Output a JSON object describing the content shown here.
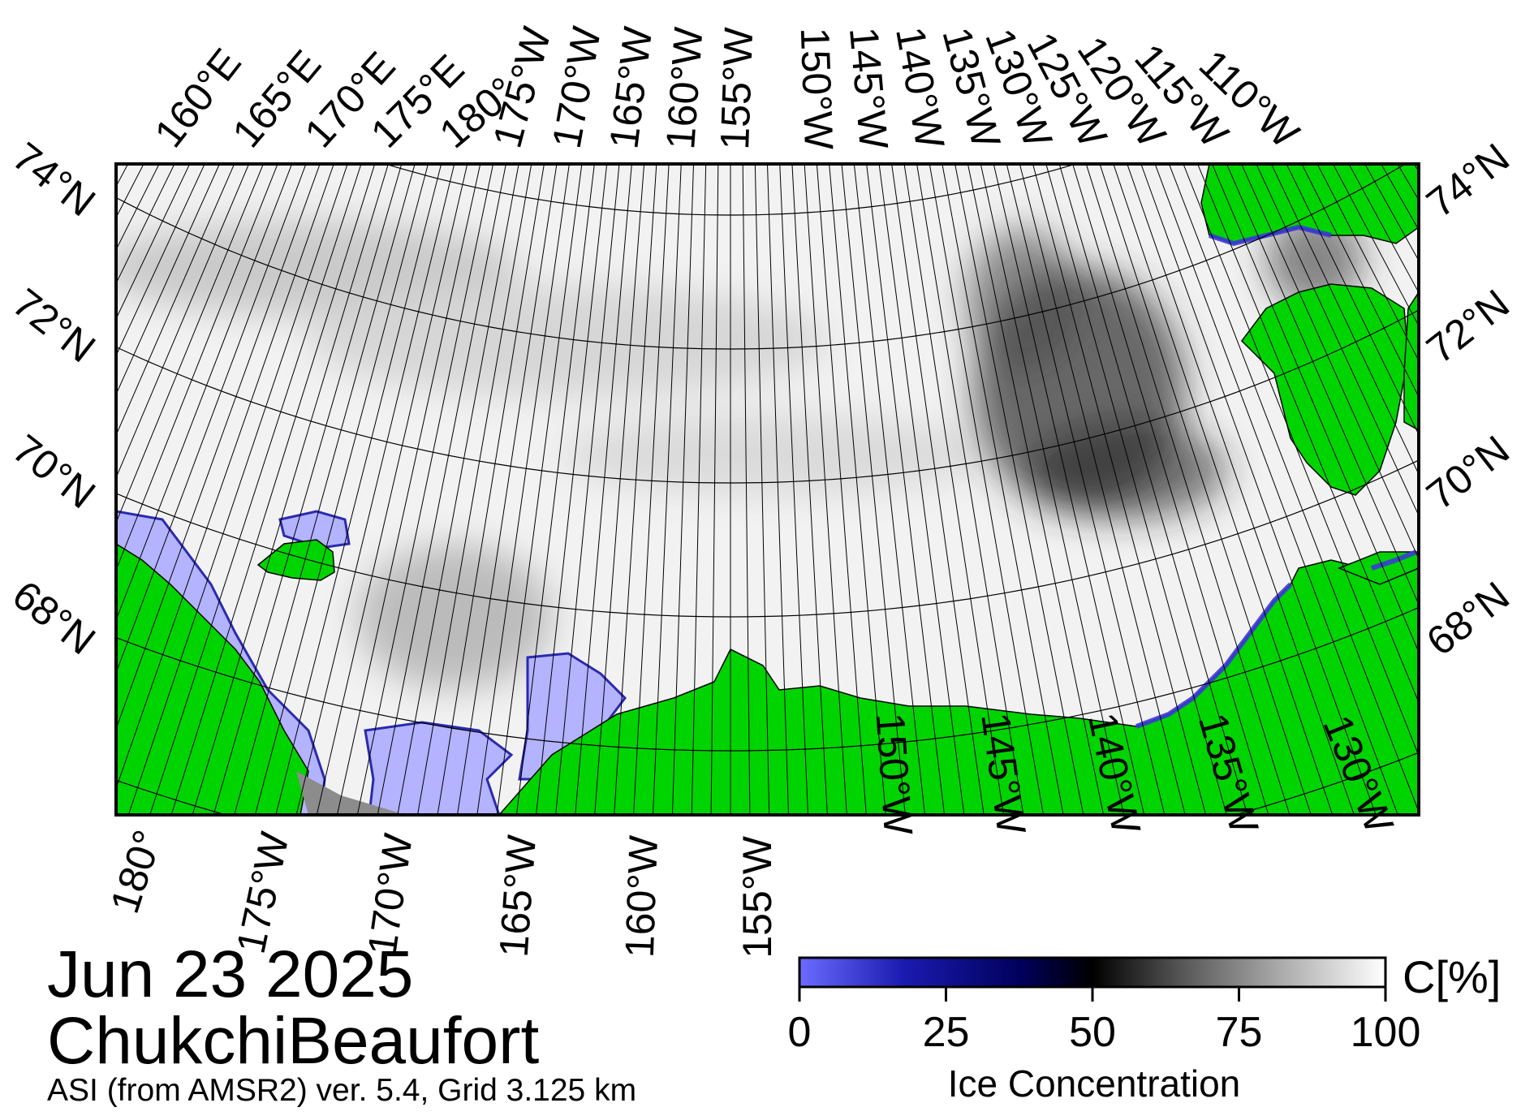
{
  "map": {
    "date": "Jun 23 2025",
    "region": "ChukchiBeaufort",
    "source": "ASI (from AMSR2) ver. 5.4,  Grid 3.125 km",
    "colors": {
      "land": "#00d400",
      "coast_gray": "#8c8c8c",
      "open_water": "#b3b3ff",
      "low_ice": "#3b3bd6",
      "grid": "#000000"
    },
    "top_lon_labels": [
      "160°E",
      "165°E",
      "170°E",
      "175°E",
      "180°",
      "175°W",
      "170°W",
      "165°W",
      "160°W",
      "155°W",
      "150°W",
      "145°W",
      "140°W",
      "135°W",
      "130°W",
      "125°W",
      "120°W",
      "115°W",
      "110°W"
    ],
    "bottom_lon_labels": [
      "180°",
      "175°W",
      "170°W",
      "165°W",
      "160°W",
      "155°W",
      "150°W",
      "145°W",
      "140°W",
      "135°W",
      "130°W"
    ],
    "left_lat_labels": [
      "74°N",
      "72°N",
      "70°N",
      "68°N"
    ],
    "right_lat_labels": [
      "74°N",
      "72°N",
      "70°N",
      "68°N"
    ]
  },
  "colorbar": {
    "title": "Ice Concentration",
    "unit": "C[%]",
    "ticks": [
      "0",
      "25",
      "50",
      "75",
      "100"
    ],
    "range": [
      0,
      100
    ],
    "stops": [
      "#6b6bff",
      "#1a1ab0",
      "#00005a",
      "#000000",
      "#555555",
      "#aaaaaa",
      "#ffffff"
    ]
  }
}
